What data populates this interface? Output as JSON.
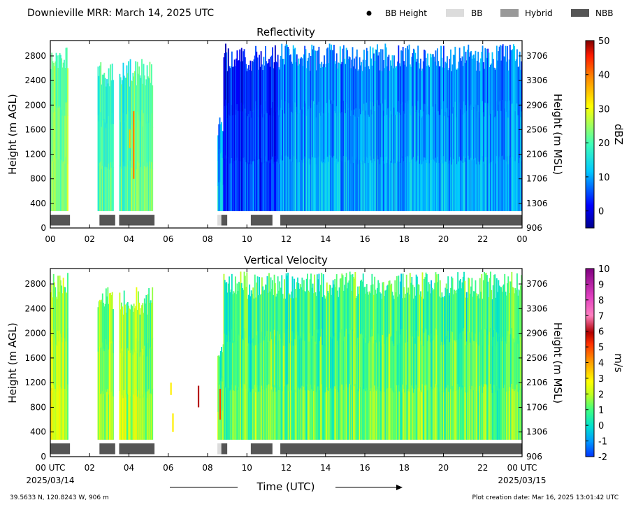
{
  "header": {
    "title": "Downieville MRR:  March 14, 2025 UTC",
    "legend": [
      {
        "label": "BB Height",
        "kind": "dot",
        "color": "#000000"
      },
      {
        "label": "BB",
        "kind": "box",
        "color": "#dcdcdc"
      },
      {
        "label": "Hybrid",
        "kind": "box",
        "color": "#999999"
      },
      {
        "label": "NBB",
        "kind": "box",
        "color": "#555555"
      }
    ]
  },
  "footer": {
    "location": "39.5633 N, 120.8243 W, 906 m",
    "creation": "Plot creation date: Mar 16, 2025 13:01:42 UTC",
    "time_label": "Time (UTC)"
  },
  "chart_data": [
    {
      "type": "heatmap",
      "title": "Reflectivity",
      "ylabel": "Height (m AGL)",
      "ylabel_right": "Height (m MSL)",
      "colorbar_label": "dBZ",
      "xlim": [
        0,
        24
      ],
      "ylim": [
        0,
        3050
      ],
      "x_ticks": [
        "00",
        "02",
        "04",
        "06",
        "08",
        "10",
        "12",
        "14",
        "16",
        "18",
        "20",
        "22",
        "00"
      ],
      "y_ticks": [
        0,
        400,
        800,
        1200,
        1600,
        2000,
        2400,
        2800
      ],
      "y_ticks_right": [
        906,
        1306,
        1706,
        2106,
        2506,
        2906,
        3306,
        3706
      ],
      "colorbar": {
        "min": -5,
        "max": 50,
        "ticks": [
          0,
          10,
          20,
          30,
          40,
          50
        ]
      },
      "regions": [
        {
          "start": 0.0,
          "end": 0.9,
          "top": 3000,
          "level": 0.52
        },
        {
          "start": 2.4,
          "end": 3.2,
          "top": 2750,
          "level": 0.45
        },
        {
          "start": 3.5,
          "end": 5.2,
          "top": 2750,
          "level": 0.48
        },
        {
          "start": 8.5,
          "end": 8.8,
          "top": 1900,
          "level": 0.3
        },
        {
          "start": 8.8,
          "end": 11.7,
          "top": 3000,
          "level": 0.18
        },
        {
          "start": 11.7,
          "end": 24.0,
          "top": 3000,
          "level": 0.28
        }
      ],
      "highlights": [
        {
          "x": 4.2,
          "y0": 800,
          "y1": 1900,
          "value": 40
        },
        {
          "x": 4.0,
          "y0": 1300,
          "y1": 1600,
          "value": 35
        }
      ],
      "bands": [
        {
          "start": 0.0,
          "end": 1.0,
          "type": "NBB"
        },
        {
          "start": 2.5,
          "end": 3.3,
          "type": "NBB"
        },
        {
          "start": 3.5,
          "end": 5.3,
          "type": "NBB"
        },
        {
          "start": 8.5,
          "end": 8.7,
          "type": "BB"
        },
        {
          "start": 8.7,
          "end": 9.0,
          "type": "NBB"
        },
        {
          "start": 10.2,
          "end": 11.3,
          "type": "NBB"
        },
        {
          "start": 11.7,
          "end": 24.0,
          "type": "NBB"
        }
      ]
    },
    {
      "type": "heatmap",
      "title": "Vertical Velocity",
      "ylabel": "Height (m AGL)",
      "ylabel_right": "Height (m MSL)",
      "colorbar_label": "m/s",
      "xlim": [
        0,
        24
      ],
      "ylim": [
        0,
        3050
      ],
      "x_ticks": [
        "00 UTC",
        "02",
        "04",
        "06",
        "08",
        "10",
        "12",
        "14",
        "16",
        "18",
        "20",
        "22",
        "00 UTC"
      ],
      "x_dates": [
        "2025/03/14",
        "2025/03/15"
      ],
      "y_ticks": [
        0,
        400,
        800,
        1200,
        1600,
        2000,
        2400,
        2800
      ],
      "y_ticks_right": [
        906,
        1306,
        1706,
        2106,
        2506,
        2906,
        3306,
        3706
      ],
      "colorbar": {
        "min": -2,
        "max": 10,
        "ticks": [
          -2,
          -1,
          0,
          1,
          2,
          3,
          4,
          5,
          6,
          7,
          8,
          9,
          10
        ]
      },
      "regions": [
        {
          "start": 0.0,
          "end": 0.9,
          "top": 3000,
          "level": 0.34
        },
        {
          "start": 2.4,
          "end": 3.2,
          "top": 2750,
          "level": 0.32
        },
        {
          "start": 3.5,
          "end": 5.2,
          "top": 2750,
          "level": 0.32
        },
        {
          "start": 8.5,
          "end": 8.8,
          "top": 1900,
          "level": 0.3
        },
        {
          "start": 8.8,
          "end": 11.7,
          "top": 3000,
          "level": 0.27
        },
        {
          "start": 11.7,
          "end": 24.0,
          "top": 3000,
          "level": 0.27
        }
      ],
      "highlights": [
        {
          "x": 7.5,
          "y0": 800,
          "y1": 1150,
          "value": 6
        },
        {
          "x": 6.1,
          "y0": 1000,
          "y1": 1200,
          "value": 3
        },
        {
          "x": 6.2,
          "y0": 400,
          "y1": 700,
          "value": 3
        },
        {
          "x": 8.6,
          "y0": 600,
          "y1": 1100,
          "value": 5
        }
      ],
      "bands": [
        {
          "start": 0.0,
          "end": 1.0,
          "type": "NBB"
        },
        {
          "start": 2.5,
          "end": 3.3,
          "type": "NBB"
        },
        {
          "start": 3.5,
          "end": 5.3,
          "type": "NBB"
        },
        {
          "start": 8.5,
          "end": 8.7,
          "type": "BB"
        },
        {
          "start": 8.7,
          "end": 9.0,
          "type": "NBB"
        },
        {
          "start": 10.2,
          "end": 11.3,
          "type": "NBB"
        },
        {
          "start": 11.7,
          "end": 24.0,
          "type": "NBB"
        }
      ]
    }
  ]
}
